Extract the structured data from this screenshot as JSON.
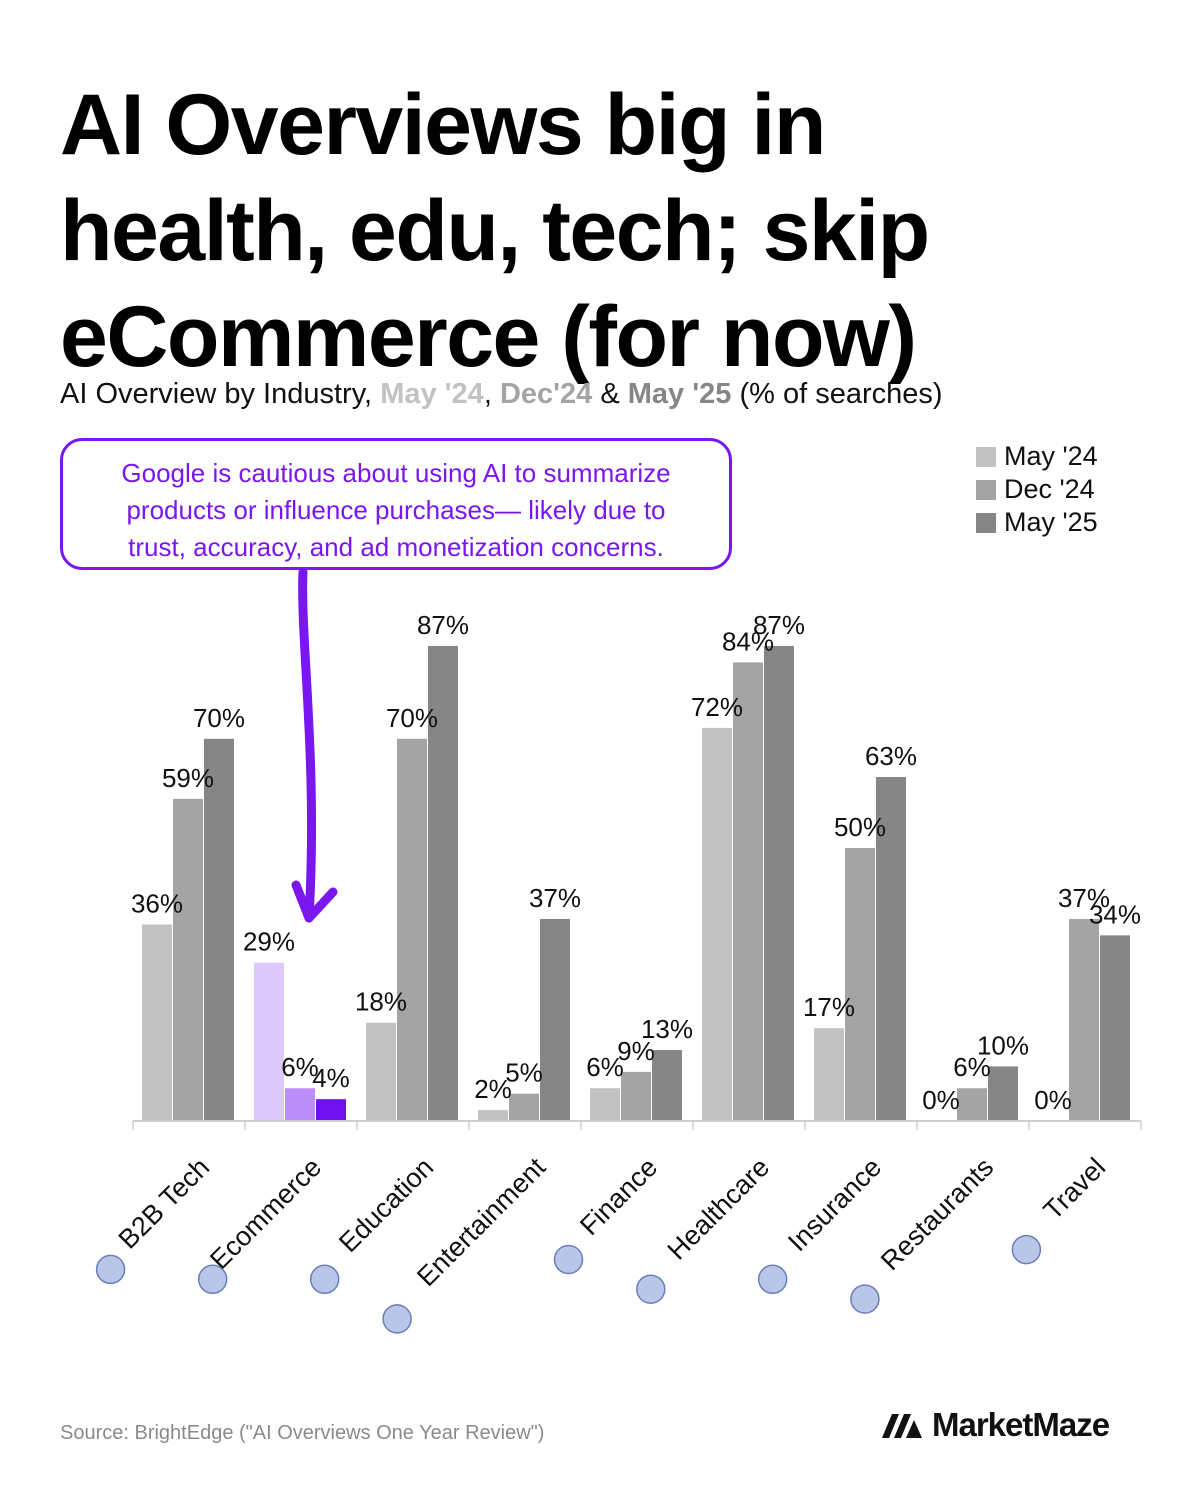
{
  "headline": {
    "line1": "AI Overviews big in",
    "line2": "health, edu, tech; skip",
    "line3": "eCommerce (for now)"
  },
  "subtitle": {
    "prefix": "AI Overview by Industry, ",
    "period1": "May '24",
    "sep1": ", ",
    "period2": "Dec'24",
    "sep2": " & ",
    "period3": "May '25",
    "suffix": " (% of searches)"
  },
  "callout": {
    "line1": "Google is cautious about using AI to summarize",
    "line2": "products or influence purchases— likely due to",
    "line3": "trust, accuracy, and ad monetization concerns."
  },
  "colors": {
    "may24": "#c2c2c2",
    "dec24": "#a4a4a4",
    "may25": "#868686",
    "accent": "#7a16f0",
    "ecommerce_may24": "#dccafd",
    "ecommerce_dec24": "#bb8efa",
    "ecommerce_may25": "#7012f0"
  },
  "chart_data": {
    "type": "bar",
    "categories": [
      "B2B Tech",
      "Ecommerce",
      "Education",
      "Entertainment",
      "Finance",
      "Healthcare",
      "Insurance",
      "Restaurants",
      "Travel"
    ],
    "category_icons": [
      "computer-icon",
      "shopping-cart-icon",
      "graduation-cap-icon",
      "clapperboard-icon",
      "money-bag-icon",
      "hospital-icon",
      "shield-icon",
      "plate-cutlery-icon",
      "airplane-icon"
    ],
    "series": [
      {
        "name": "May '24",
        "values": [
          36,
          29,
          18,
          2,
          6,
          72,
          17,
          0,
          0
        ]
      },
      {
        "name": "Dec '24",
        "values": [
          59,
          6,
          70,
          5,
          9,
          84,
          50,
          6,
          37
        ]
      },
      {
        "name": "May '25",
        "values": [
          70,
          4,
          87,
          37,
          13,
          87,
          63,
          10,
          34
        ]
      }
    ],
    "value_suffix": "%",
    "ylim": [
      0,
      90
    ],
    "grid": false,
    "legend_position": "top-right",
    "highlight_category": "Ecommerce"
  },
  "source": "Source: BrightEdge (\"AI Overviews One Year Review\")",
  "brand": {
    "name": "MarketMaze"
  }
}
